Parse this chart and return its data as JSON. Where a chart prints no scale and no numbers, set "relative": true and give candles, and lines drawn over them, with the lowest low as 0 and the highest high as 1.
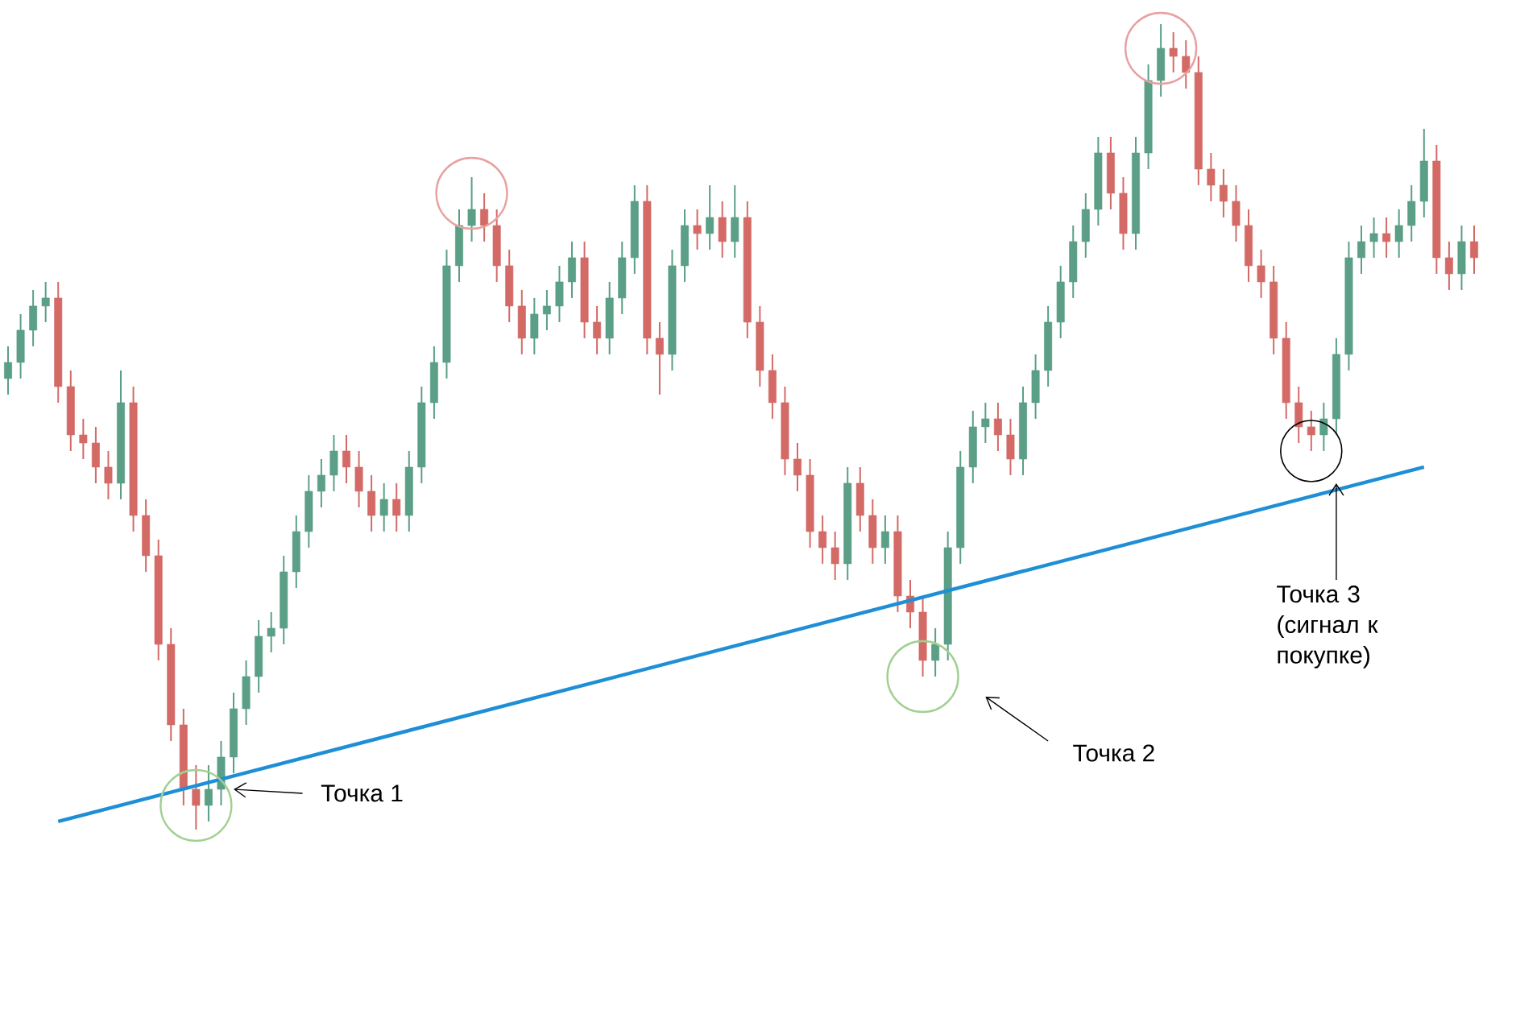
{
  "chart_data": {
    "type": "candlestick",
    "relative": true,
    "categories": [
      null,
      null,
      null,
      null,
      null,
      null,
      null,
      null,
      null,
      null,
      null,
      null,
      null,
      null,
      null,
      null,
      null,
      null,
      null,
      null,
      null,
      null,
      null,
      null,
      null,
      null,
      null,
      null,
      null,
      null,
      null,
      null,
      null,
      null,
      null,
      null,
      null,
      null,
      null,
      null,
      null,
      null,
      null,
      null,
      null,
      null,
      null,
      null,
      null,
      null,
      null,
      null,
      null,
      null,
      null,
      null,
      null,
      null,
      null,
      null,
      null,
      null,
      null,
      null,
      null,
      null,
      null,
      null,
      null,
      null,
      null,
      null,
      null,
      null,
      null,
      null,
      null,
      null,
      null,
      null,
      null,
      null,
      null,
      null,
      null,
      null,
      null,
      null,
      null,
      null,
      null,
      null,
      null,
      null,
      null,
      null,
      null,
      null,
      null,
      null,
      null,
      null,
      null,
      null,
      null,
      null,
      null,
      null,
      null,
      null,
      null,
      null,
      null,
      null,
      null,
      null,
      null,
      null
    ],
    "ohlc": [
      [
        0.56,
        0.6,
        0.54,
        0.58
      ],
      [
        0.58,
        0.64,
        0.56,
        0.62
      ],
      [
        0.62,
        0.67,
        0.6,
        0.65
      ],
      [
        0.65,
        0.68,
        0.63,
        0.66
      ],
      [
        0.66,
        0.68,
        0.53,
        0.55
      ],
      [
        0.55,
        0.57,
        0.47,
        0.49
      ],
      [
        0.49,
        0.51,
        0.46,
        0.48
      ],
      [
        0.48,
        0.5,
        0.43,
        0.45
      ],
      [
        0.45,
        0.47,
        0.41,
        0.43
      ],
      [
        0.43,
        0.57,
        0.41,
        0.53
      ],
      [
        0.53,
        0.55,
        0.37,
        0.39
      ],
      [
        0.39,
        0.41,
        0.32,
        0.34
      ],
      [
        0.34,
        0.36,
        0.21,
        0.23
      ],
      [
        0.23,
        0.25,
        0.11,
        0.13
      ],
      [
        0.13,
        0.15,
        0.03,
        0.05
      ],
      [
        0.05,
        0.08,
        0.0,
        0.03
      ],
      [
        0.03,
        0.08,
        0.01,
        0.05
      ],
      [
        0.05,
        0.11,
        0.03,
        0.09
      ],
      [
        0.09,
        0.17,
        0.07,
        0.15
      ],
      [
        0.15,
        0.21,
        0.13,
        0.19
      ],
      [
        0.19,
        0.26,
        0.17,
        0.24
      ],
      [
        0.24,
        0.27,
        0.22,
        0.25
      ],
      [
        0.25,
        0.34,
        0.23,
        0.32
      ],
      [
        0.32,
        0.39,
        0.3,
        0.37
      ],
      [
        0.37,
        0.44,
        0.35,
        0.42
      ],
      [
        0.42,
        0.46,
        0.4,
        0.44
      ],
      [
        0.44,
        0.49,
        0.42,
        0.47
      ],
      [
        0.47,
        0.49,
        0.43,
        0.45
      ],
      [
        0.45,
        0.47,
        0.4,
        0.42
      ],
      [
        0.42,
        0.44,
        0.37,
        0.39
      ],
      [
        0.39,
        0.43,
        0.37,
        0.41
      ],
      [
        0.41,
        0.43,
        0.37,
        0.39
      ],
      [
        0.39,
        0.47,
        0.37,
        0.45
      ],
      [
        0.45,
        0.55,
        0.43,
        0.53
      ],
      [
        0.53,
        0.6,
        0.51,
        0.58
      ],
      [
        0.58,
        0.72,
        0.56,
        0.7
      ],
      [
        0.7,
        0.77,
        0.68,
        0.75
      ],
      [
        0.75,
        0.81,
        0.73,
        0.77
      ],
      [
        0.77,
        0.79,
        0.73,
        0.75
      ],
      [
        0.75,
        0.77,
        0.68,
        0.7
      ],
      [
        0.7,
        0.72,
        0.63,
        0.65
      ],
      [
        0.65,
        0.67,
        0.59,
        0.61
      ],
      [
        0.61,
        0.66,
        0.59,
        0.64
      ],
      [
        0.64,
        0.67,
        0.62,
        0.65
      ],
      [
        0.65,
        0.7,
        0.63,
        0.68
      ],
      [
        0.68,
        0.73,
        0.66,
        0.71
      ],
      [
        0.71,
        0.73,
        0.61,
        0.63
      ],
      [
        0.63,
        0.65,
        0.59,
        0.61
      ],
      [
        0.61,
        0.68,
        0.59,
        0.66
      ],
      [
        0.66,
        0.73,
        0.64,
        0.71
      ],
      [
        0.71,
        0.8,
        0.69,
        0.78
      ],
      [
        0.78,
        0.8,
        0.59,
        0.61
      ],
      [
        0.61,
        0.63,
        0.54,
        0.59
      ],
      [
        0.59,
        0.72,
        0.57,
        0.7
      ],
      [
        0.7,
        0.77,
        0.68,
        0.75
      ],
      [
        0.75,
        0.77,
        0.72,
        0.74
      ],
      [
        0.74,
        0.8,
        0.72,
        0.76
      ],
      [
        0.76,
        0.78,
        0.71,
        0.73
      ],
      [
        0.73,
        0.8,
        0.71,
        0.76
      ],
      [
        0.76,
        0.78,
        0.61,
        0.63
      ],
      [
        0.63,
        0.65,
        0.55,
        0.57
      ],
      [
        0.57,
        0.59,
        0.51,
        0.53
      ],
      [
        0.53,
        0.55,
        0.44,
        0.46
      ],
      [
        0.46,
        0.48,
        0.42,
        0.44
      ],
      [
        0.44,
        0.46,
        0.35,
        0.37
      ],
      [
        0.37,
        0.39,
        0.33,
        0.35
      ],
      [
        0.35,
        0.37,
        0.31,
        0.33
      ],
      [
        0.33,
        0.45,
        0.31,
        0.43
      ],
      [
        0.43,
        0.45,
        0.37,
        0.39
      ],
      [
        0.39,
        0.41,
        0.33,
        0.35
      ],
      [
        0.35,
        0.39,
        0.33,
        0.37
      ],
      [
        0.37,
        0.39,
        0.27,
        0.29
      ],
      [
        0.29,
        0.31,
        0.25,
        0.27
      ],
      [
        0.27,
        0.29,
        0.19,
        0.21
      ],
      [
        0.21,
        0.25,
        0.19,
        0.23
      ],
      [
        0.23,
        0.37,
        0.21,
        0.35
      ],
      [
        0.35,
        0.47,
        0.33,
        0.45
      ],
      [
        0.45,
        0.52,
        0.43,
        0.5
      ],
      [
        0.5,
        0.53,
        0.48,
        0.51
      ],
      [
        0.51,
        0.53,
        0.47,
        0.49
      ],
      [
        0.49,
        0.51,
        0.44,
        0.46
      ],
      [
        0.46,
        0.55,
        0.44,
        0.53
      ],
      [
        0.53,
        0.59,
        0.51,
        0.57
      ],
      [
        0.57,
        0.65,
        0.55,
        0.63
      ],
      [
        0.63,
        0.7,
        0.61,
        0.68
      ],
      [
        0.68,
        0.75,
        0.66,
        0.73
      ],
      [
        0.73,
        0.79,
        0.71,
        0.77
      ],
      [
        0.77,
        0.86,
        0.75,
        0.84
      ],
      [
        0.84,
        0.86,
        0.77,
        0.79
      ],
      [
        0.79,
        0.81,
        0.72,
        0.74
      ],
      [
        0.74,
        0.86,
        0.72,
        0.84
      ],
      [
        0.84,
        0.95,
        0.82,
        0.93
      ],
      [
        0.93,
        1.0,
        0.91,
        0.97
      ],
      [
        0.97,
        0.99,
        0.94,
        0.96
      ],
      [
        0.96,
        0.98,
        0.92,
        0.94
      ],
      [
        0.94,
        0.96,
        0.8,
        0.82
      ],
      [
        0.82,
        0.84,
        0.78,
        0.8
      ],
      [
        0.8,
        0.82,
        0.76,
        0.78
      ],
      [
        0.78,
        0.8,
        0.73,
        0.75
      ],
      [
        0.75,
        0.77,
        0.68,
        0.7
      ],
      [
        0.7,
        0.72,
        0.66,
        0.68
      ],
      [
        0.68,
        0.7,
        0.59,
        0.61
      ],
      [
        0.61,
        0.63,
        0.51,
        0.53
      ],
      [
        0.53,
        0.55,
        0.48,
        0.5
      ],
      [
        0.5,
        0.52,
        0.47,
        0.49
      ],
      [
        0.49,
        0.53,
        0.47,
        0.51
      ],
      [
        0.51,
        0.61,
        0.49,
        0.59
      ],
      [
        0.59,
        0.73,
        0.57,
        0.71
      ],
      [
        0.71,
        0.75,
        0.69,
        0.73
      ],
      [
        0.73,
        0.76,
        0.71,
        0.74
      ],
      [
        0.74,
        0.76,
        0.71,
        0.73
      ],
      [
        0.73,
        0.77,
        0.71,
        0.75
      ],
      [
        0.75,
        0.8,
        0.73,
        0.78
      ],
      [
        0.78,
        0.87,
        0.76,
        0.83
      ],
      [
        0.83,
        0.85,
        0.69,
        0.71
      ],
      [
        0.71,
        0.73,
        0.67,
        0.69
      ],
      [
        0.69,
        0.75,
        0.67,
        0.73
      ],
      [
        0.73,
        0.75,
        0.69,
        0.71
      ]
    ],
    "series": [
      {
        "type": "line",
        "color": "#1e8fd6",
        "values": [
          null,
          null,
          null,
          null,
          0.01,
          null,
          null,
          null,
          null,
          null,
          null,
          null,
          null,
          null,
          null,
          null,
          null,
          null,
          null,
          null,
          null,
          null,
          null,
          null,
          null,
          null,
          null,
          null,
          null,
          null,
          null,
          null,
          null,
          null,
          null,
          null,
          null,
          null,
          null,
          null,
          null,
          null,
          null,
          null,
          null,
          null,
          null,
          null,
          null,
          null,
          null,
          null,
          null,
          null,
          null,
          null,
          null,
          null,
          null,
          null,
          null,
          null,
          null,
          null,
          null,
          null,
          null,
          null,
          null,
          null,
          null,
          null,
          null,
          null,
          null,
          null,
          null,
          null,
          null,
          null,
          null,
          null,
          null,
          null,
          null,
          null,
          null,
          null,
          null,
          null,
          null,
          null,
          null,
          null,
          null,
          null,
          null,
          null,
          null,
          null,
          null,
          null,
          null,
          null,
          null,
          null,
          null,
          null,
          null,
          null,
          null,
          null,
          null,
          0.45,
          null,
          null,
          null,
          null
        ]
      }
    ],
    "annotations": [
      "Точка 1",
      "Точка 2",
      "Точка 3 (сигнал к покупке)"
    ]
  }
}
